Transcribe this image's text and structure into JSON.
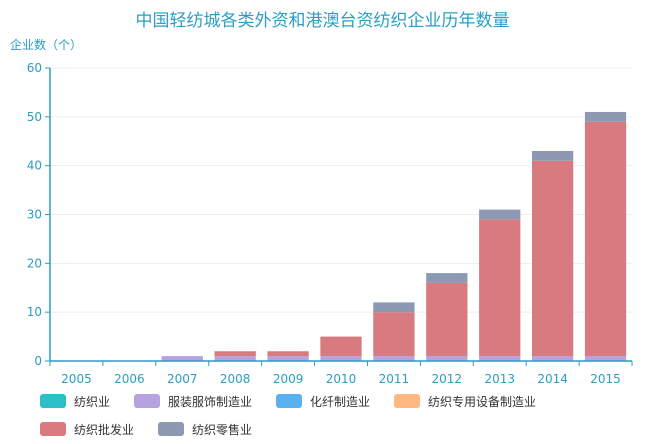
{
  "chart_data": {
    "type": "bar",
    "stacked": true,
    "title": "中国轻纺城各类外资和港澳台资纺织企业历年数量",
    "ylabel": "企业数（个）",
    "categories": [
      "2005",
      "2006",
      "2007",
      "2008",
      "2009",
      "2010",
      "2011",
      "2012",
      "2013",
      "2014",
      "2015"
    ],
    "ylim": [
      0,
      60
    ],
    "yticks": [
      0,
      10,
      20,
      30,
      40,
      50,
      60
    ],
    "legend_position": "bottom",
    "series": [
      {
        "name": "纺织业",
        "color": "#2bbfc7",
        "values": [
          0,
          0,
          0,
          0,
          0,
          0,
          0,
          0,
          0,
          0,
          0
        ]
      },
      {
        "name": "服装服饰制造业",
        "color": "#b6a2de",
        "values": [
          0,
          0,
          1,
          1,
          1,
          1,
          1,
          1,
          1,
          1,
          1
        ]
      },
      {
        "name": "化纤制造业",
        "color": "#5ab1ef",
        "values": [
          0,
          0,
          0,
          0,
          0,
          0,
          0,
          0,
          0,
          0,
          0
        ]
      },
      {
        "name": "纺织专用设备制造业",
        "color": "#ffb980",
        "values": [
          0,
          0,
          0,
          0,
          0,
          0,
          0,
          0,
          0,
          0,
          0
        ]
      },
      {
        "name": "纺织批发业",
        "color": "#d87a80",
        "values": [
          0,
          0,
          0,
          1,
          1,
          4,
          9,
          15,
          28,
          40,
          48
        ]
      },
      {
        "name": "纺织零售业",
        "color": "#8d98b3",
        "values": [
          0,
          0,
          0,
          0,
          0,
          0,
          2,
          2,
          2,
          2,
          2
        ]
      }
    ]
  }
}
